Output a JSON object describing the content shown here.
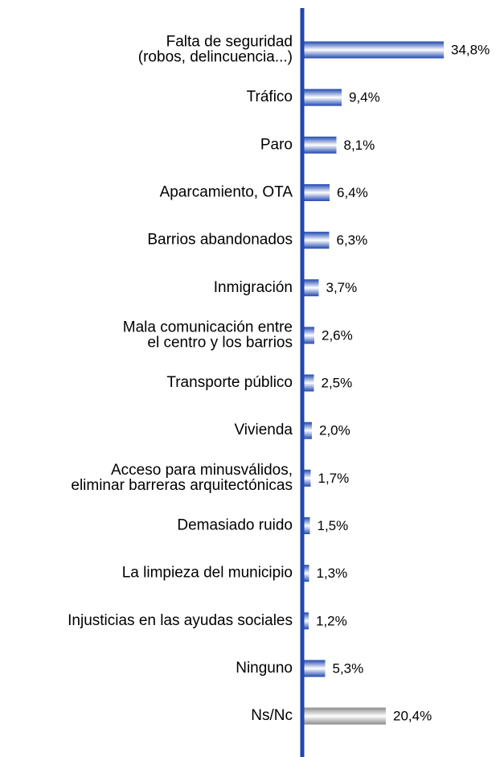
{
  "chart_data": {
    "type": "barh",
    "categories": [
      [
        "Falta de seguridad",
        "(robos, delincuencia...)"
      ],
      [
        "Tráfico"
      ],
      [
        "Paro"
      ],
      [
        "Aparcamiento, OTA"
      ],
      [
        "Barrios abandonados"
      ],
      [
        "Inmigración"
      ],
      [
        "Mala comunicación entre",
        "el centro y los barrios"
      ],
      [
        "Transporte público"
      ],
      [
        "Vivienda"
      ],
      [
        "Acceso para minusválidos,",
        "eliminar barreras arquitectónicas"
      ],
      [
        "Demasiado ruido"
      ],
      [
        "La limpieza del municipio"
      ],
      [
        "Injusticias en las ayudas sociales"
      ],
      [
        "Ninguno"
      ],
      [
        "Ns/Nc"
      ]
    ],
    "values": [
      34.8,
      9.4,
      8.1,
      6.4,
      6.3,
      3.7,
      2.6,
      2.5,
      2.0,
      1.7,
      1.5,
      1.3,
      1.2,
      5.3,
      20.4
    ],
    "value_labels": [
      "34,8%",
      "9,4%",
      "8,1%",
      "6,4%",
      "6,3%",
      "3,7%",
      "2,6%",
      "2,5%",
      "2,0%",
      "1,7%",
      "1,5%",
      "1,3%",
      "1,2%",
      "5,3%",
      "20,4%"
    ],
    "colors": [
      "#1f47b0",
      "#1f47b0",
      "#1f47b0",
      "#1f47b0",
      "#1f47b0",
      "#1f47b0",
      "#1f47b0",
      "#1f47b0",
      "#1f47b0",
      "#1f47b0",
      "#1f47b0",
      "#1f47b0",
      "#1f47b0",
      "#1f47b0",
      "#8a8a8a"
    ],
    "axis_color": "#1f47b0"
  }
}
